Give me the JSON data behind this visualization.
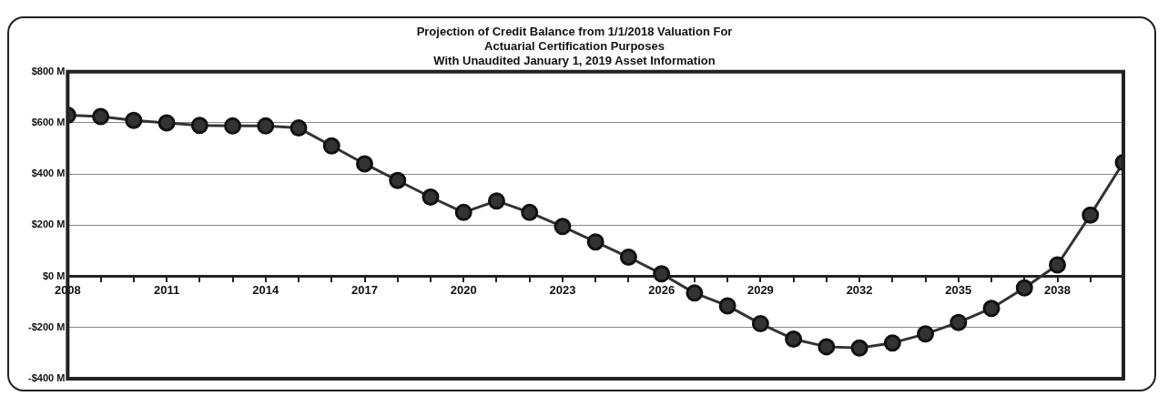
{
  "chart_data": {
    "type": "line",
    "title": "Projection of Credit Balance from 1/1/2018 Valuation For\nActuarial Certification Purposes\nWith Unaudited January 1, 2019 Asset Information",
    "x": [
      2008,
      2009,
      2010,
      2011,
      2012,
      2013,
      2014,
      2015,
      2016,
      2017,
      2018,
      2019,
      2020,
      2021,
      2022,
      2023,
      2024,
      2025,
      2026,
      2027,
      2028,
      2029,
      2030,
      2031,
      2032,
      2033,
      2034,
      2035,
      2036,
      2037,
      2038,
      2039,
      2040
    ],
    "series": [
      {
        "color": "#333333",
        "values": [
          630,
          625,
          610,
          600,
          590,
          588,
          588,
          580,
          510,
          440,
          375,
          310,
          250,
          295,
          250,
          195,
          135,
          75,
          10,
          -65,
          -115,
          -185,
          -245,
          -275,
          -280,
          -260,
          -225,
          -180,
          -125,
          -45,
          45,
          240,
          445
        ]
      }
    ],
    "xlim": [
      2008,
      2040
    ],
    "xticks": [
      2008,
      {
        "value": 2009,
        "label": null
      },
      {
        "value": 2010,
        "label": null
      },
      2011,
      {
        "value": 2012,
        "label": null
      },
      {
        "value": 2013,
        "label": null
      },
      2014,
      {
        "value": 2015,
        "label": null
      },
      {
        "value": 2016,
        "label": null
      },
      2017,
      {
        "value": 2018,
        "label": null
      },
      {
        "value": 2019,
        "label": null
      },
      2020,
      {
        "value": 2021,
        "label": null
      },
      {
        "value": 2022,
        "label": null
      },
      2023,
      {
        "value": 2024,
        "label": null
      },
      {
        "value": 2025,
        "label": null
      },
      2026,
      {
        "value": 2027,
        "label": null
      },
      {
        "value": 2028,
        "label": null
      },
      2029,
      {
        "value": 2030,
        "label": null
      },
      {
        "value": 2031,
        "label": null
      },
      2032,
      {
        "value": 2033,
        "label": null
      },
      {
        "value": 2034,
        "label": null
      },
      2035,
      {
        "value": 2036,
        "label": null
      },
      {
        "value": 2037,
        "label": null
      },
      2038,
      {
        "value": 2039,
        "label": null
      }
    ],
    "ylim": [
      -400,
      800
    ],
    "yticks": [
      {
        "value": -400,
        "label": "-$400 M"
      },
      {
        "value": -200,
        "label": "-$200 M"
      },
      {
        "value": 0,
        "label": "$0 M"
      },
      {
        "value": 200,
        "label": "$200 M"
      },
      {
        "value": 400,
        "label": "$400 M"
      },
      {
        "value": 600,
        "label": "$600 M"
      },
      {
        "value": 800,
        "label": "$800 M"
      }
    ],
    "grid": "y",
    "legend": false,
    "marker": "circle",
    "line_style": "solid"
  }
}
